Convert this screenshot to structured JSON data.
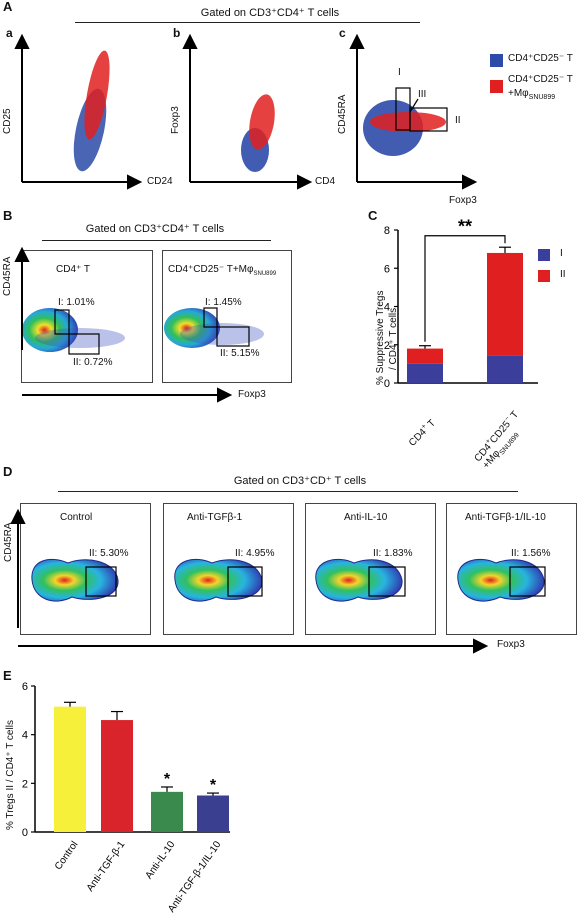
{
  "panelA": {
    "letter": "A",
    "gate": "Gated on CD3⁺CD4⁺ T cells",
    "sub": [
      {
        "letter": "a",
        "xlabel": "CD24",
        "ylabel": "CD25"
      },
      {
        "letter": "b",
        "xlabel": "CD4",
        "ylabel": "Foxp3"
      },
      {
        "letter": "c",
        "xlabel": "Foxp3",
        "ylabel": "CD45RA"
      }
    ],
    "gates_c": [
      "I",
      "III",
      "II"
    ],
    "legend": [
      {
        "label": "CD4⁺CD25⁻ T",
        "color": "#2c4aa8"
      },
      {
        "label": "CD4⁺CD25⁻ T",
        "label2": "+Mφ",
        "sub": "SNU899",
        "color": "#e02020"
      }
    ]
  },
  "panelB": {
    "letter": "B",
    "gate": "Gated on CD3⁺CD4⁺ T cells",
    "ylabel": "CD45RA",
    "xlabel": "Foxp3",
    "plots": [
      {
        "title": "CD4⁺ T",
        "gateI": "I: 1.01%",
        "gateII": "II: 0.72%"
      },
      {
        "title": "CD4⁺CD25⁻ T+Mφ",
        "title_sub": "SNU899",
        "gateI": "I: 1.45%",
        "gateII": "II: 5.15%"
      }
    ]
  },
  "panelC": {
    "letter": "C",
    "significance": "**",
    "ylabel_line1": "% Suppressive Tregs",
    "ylabel_line2": "/ CD4⁺ T cells",
    "legend": [
      {
        "label": "I",
        "color": "#3b3f9b"
      },
      {
        "label": "II",
        "color": "#e02020"
      }
    ]
  },
  "panelD": {
    "letter": "D",
    "gate": "Gated on CD3⁺CD⁺ T cells",
    "ylabel": "CD45RA",
    "xlabel": "Foxp3",
    "plots": [
      {
        "title": "Control",
        "gate": "II: 5.30%"
      },
      {
        "title": "Anti-TGFβ-1",
        "gate": "II: 4.95%"
      },
      {
        "title": "Anti-IL-10",
        "gate": "II: 1.83%"
      },
      {
        "title": "Anti-TGFβ-1/IL-10",
        "gate": "II: 1.56%"
      }
    ]
  },
  "panelE": {
    "letter": "E",
    "ylabel": "% Tregs II / CD4⁺ T cells",
    "significance": "*"
  },
  "chart_data": [
    {
      "type": "bar",
      "stacked": true,
      "categories": [
        "CD4⁺ T",
        "CD4⁺CD25⁻ T +MφSNU899"
      ],
      "series": [
        {
          "name": "I",
          "values": [
            1.0,
            1.45
          ],
          "color": "#3b3f9b"
        },
        {
          "name": "II",
          "values": [
            0.8,
            5.35
          ],
          "color": "#e02020"
        }
      ],
      "errors": [
        0.15,
        0.3
      ],
      "ylim": [
        0,
        8
      ],
      "yticks": [
        0,
        2,
        4,
        6,
        8
      ]
    },
    {
      "type": "bar",
      "categories": [
        "Control",
        "Anti-TGF-β-1",
        "Anti-IL-10",
        "Anti-TGF-β-1/IL-10"
      ],
      "values": [
        5.15,
        4.6,
        1.65,
        1.5
      ],
      "errors": [
        0.18,
        0.35,
        0.2,
        0.1
      ],
      "colors": [
        "#f7f03a",
        "#d8242a",
        "#3a8a4e",
        "#3a3f8f"
      ],
      "ylim": [
        0,
        6
      ],
      "yticks": [
        0,
        2,
        4,
        6
      ]
    }
  ]
}
